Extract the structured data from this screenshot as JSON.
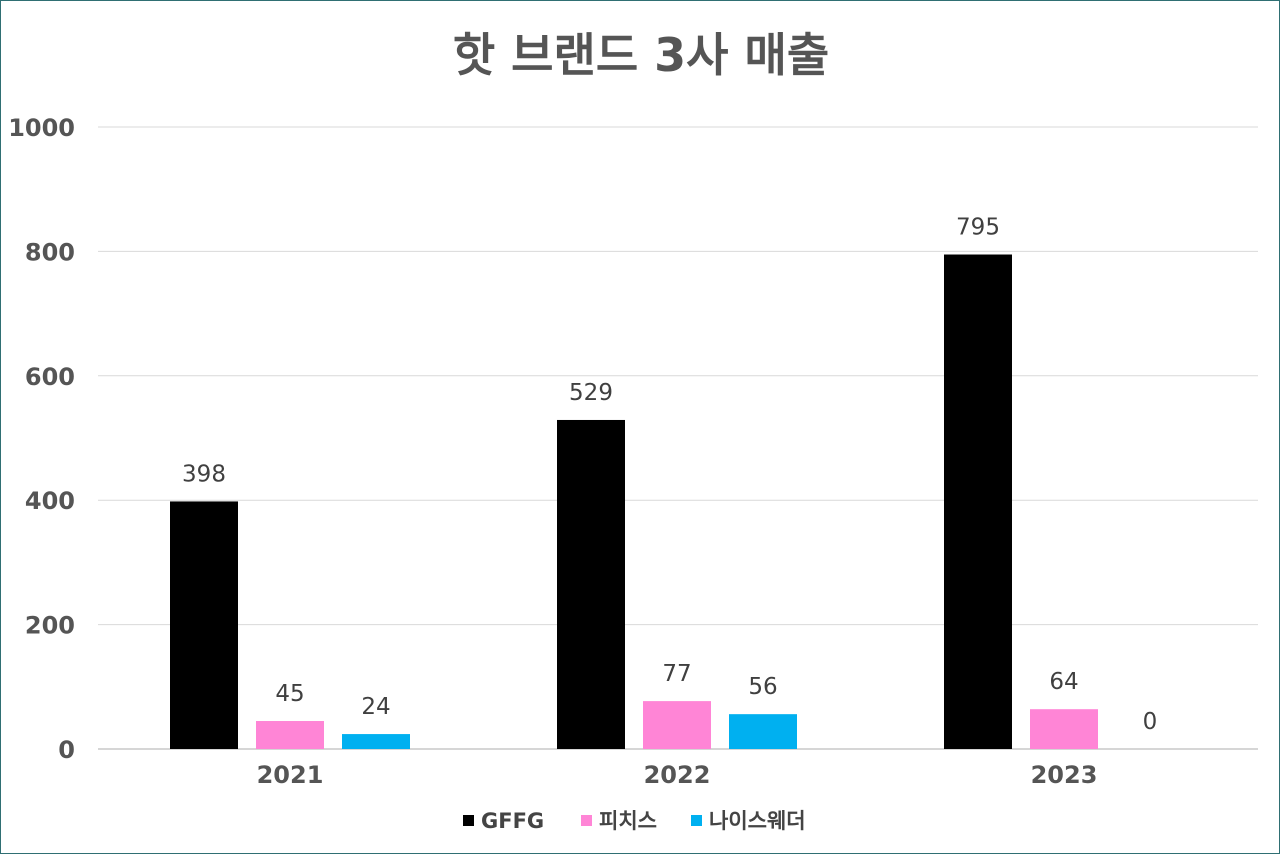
{
  "chart_data": {
    "type": "bar",
    "title": "핫 브랜드 3사 매출",
    "categories": [
      "2021",
      "2022",
      "2023"
    ],
    "series": [
      {
        "name": "GFFG",
        "values": [
          398,
          529,
          795
        ],
        "color": "#000000"
      },
      {
        "name": "피치스",
        "values": [
          45,
          77,
          64
        ],
        "color": "#ff85d6"
      },
      {
        "name": "나이스웨더",
        "values": [
          24,
          56,
          0
        ],
        "color": "#00b0f0"
      }
    ],
    "ylim": [
      0,
      1000
    ],
    "yticks": [
      0,
      200,
      400,
      600,
      800,
      1000
    ],
    "grid": true,
    "legend": "bottom",
    "data_labels": true
  }
}
